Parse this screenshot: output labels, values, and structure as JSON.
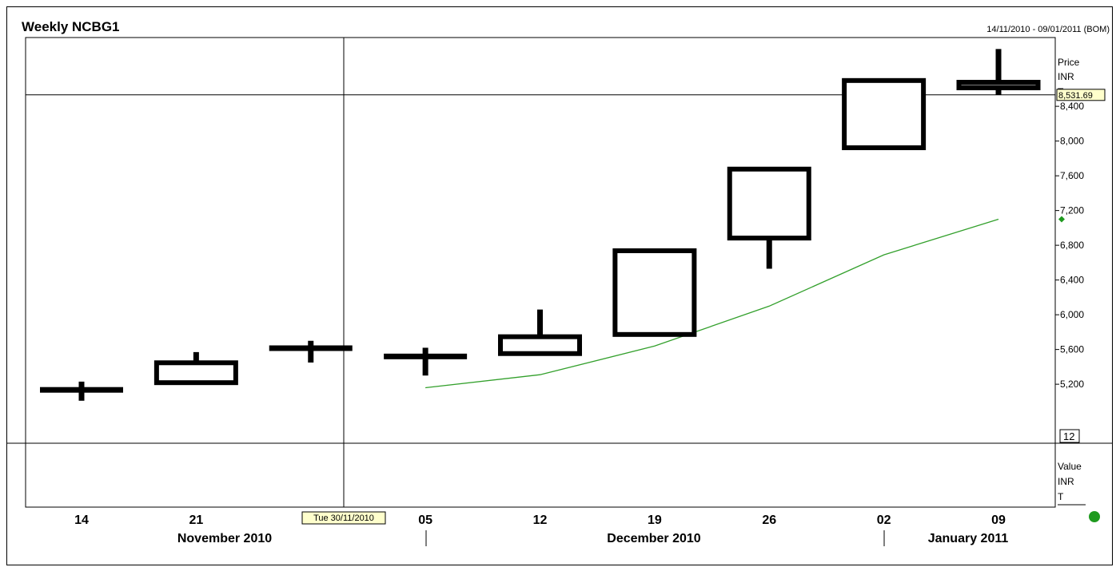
{
  "chart_data": {
    "type": "candlestick",
    "title": "Weekly NCBG1",
    "date_range": "14/11/2010 - 09/01/2011 (BOM)",
    "x_ticks": [
      "14",
      "21",
      "05",
      "12",
      "19",
      "26",
      "02",
      "09"
    ],
    "months": [
      "November 2010",
      "December 2010",
      "January 2011"
    ],
    "price_axis": {
      "label_lines": [
        "Price",
        "INR",
        "T"
      ],
      "ticks": [
        "8,400",
        "8,000",
        "7,600",
        "7,200",
        "6,800",
        "6,400",
        "6,000",
        "5,600",
        "5,200"
      ],
      "ylim": [
        4950,
        9300
      ]
    },
    "value_axis": {
      "label_lines": [
        "Value",
        "INR",
        "T"
      ]
    },
    "series": [
      {
        "candles": [
          {
            "week": "14/11/2010",
            "open": 5130,
            "high": 5230,
            "low": 5010,
            "close": 5140
          },
          {
            "week": "21/11/2010",
            "open": 5195,
            "high": 5570,
            "low": 5195,
            "close": 5470
          },
          {
            "week": "28/11/2010",
            "open": 5610,
            "high": 5700,
            "low": 5450,
            "close": 5620
          },
          {
            "week": "05/12/2010",
            "open": 5510,
            "high": 5620,
            "low": 5300,
            "close": 5530
          },
          {
            "week": "12/12/2010",
            "open": 5530,
            "high": 6060,
            "low": 5530,
            "close": 5770
          },
          {
            "week": "19/12/2010",
            "open": 5750,
            "high": 6760,
            "low": 5750,
            "close": 6760
          },
          {
            "week": "26/12/2010",
            "open": 6860,
            "high": 7700,
            "low": 6530,
            "close": 7700
          },
          {
            "week": "02/01/2011",
            "open": 7900,
            "high": 8720,
            "low": 7900,
            "close": 8720
          },
          {
            "week": "09/01/2011",
            "open": 8590,
            "high": 9060,
            "low": 8530,
            "close": 8700
          }
        ]
      },
      {
        "values": [
          5160,
          5310,
          5640,
          6100,
          6690,
          7100
        ]
      }
    ],
    "crosshair": {
      "date_label": "Tue 30/11/2010",
      "price_label": "8,531.69",
      "price": 8531.69
    },
    "period_label": "12",
    "grid": false
  },
  "colors": {
    "candle": "#000000",
    "candle_last_fill": "#808080",
    "average_line": "#33a02c",
    "marker": "#1f9a1f",
    "tag_bg": "#ffffcc"
  }
}
